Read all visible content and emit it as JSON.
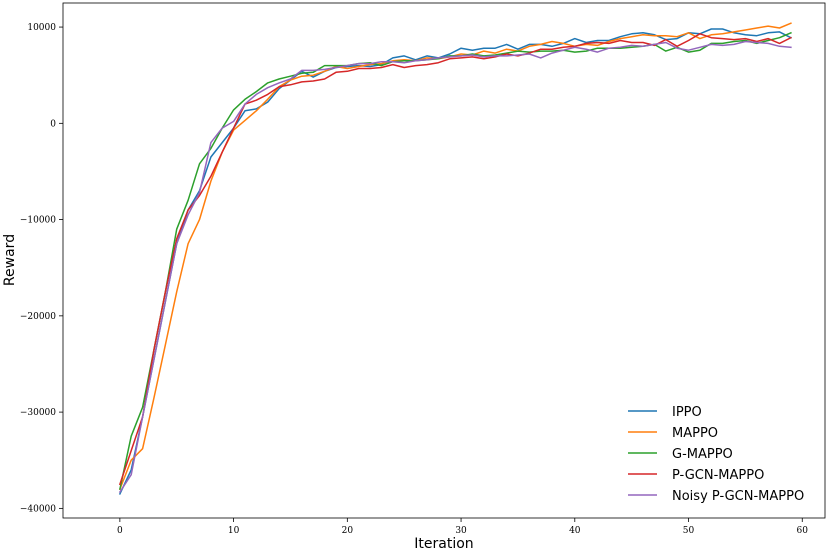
{
  "chart_data": {
    "type": "line",
    "xlabel": "Iteration",
    "ylabel": "Reward",
    "xlim": [
      -5,
      62
    ],
    "ylim": [
      -41000,
      12500
    ],
    "xticks": [
      0,
      10,
      20,
      30,
      40,
      50,
      60
    ],
    "yticks": [
      -40000,
      -30000,
      -20000,
      -10000,
      0,
      10000
    ],
    "legend_position": "lower-right",
    "grid": false,
    "series": [
      {
        "name": "IPPO",
        "color": "#1f77b4",
        "x": [
          0,
          1,
          2,
          3,
          4,
          5,
          6,
          7,
          8,
          9,
          10,
          11,
          12,
          13,
          14,
          15,
          16,
          17,
          18,
          19,
          20,
          21,
          22,
          23,
          24,
          25,
          26,
          27,
          28,
          29,
          30,
          31,
          32,
          33,
          34,
          35,
          36,
          37,
          38,
          39,
          40,
          41,
          42,
          43,
          44,
          45,
          46,
          47,
          48,
          49,
          50,
          51,
          52,
          53,
          54,
          55,
          56,
          57,
          58,
          59
        ],
        "values": [
          -38500,
          -36000,
          -30500,
          -24500,
          -18500,
          -12500,
          -9000,
          -7000,
          -3500,
          -2000,
          -500,
          1300,
          1500,
          2200,
          3600,
          4500,
          5400,
          4800,
          5400,
          5800,
          5900,
          6000,
          5900,
          6100,
          6800,
          7000,
          6600,
          7000,
          6800,
          7200,
          7800,
          7600,
          7800,
          7800,
          8200,
          7700,
          8200,
          8200,
          8000,
          8300,
          8800,
          8400,
          8600,
          8600,
          9000,
          9300,
          9400,
          9200,
          8700,
          8800,
          9400,
          9300,
          9800,
          9800,
          9400,
          9200,
          9100,
          9400,
          9500,
          8900
        ]
      },
      {
        "name": "MAPPO",
        "color": "#ff7f0e",
        "x": [
          0,
          1,
          2,
          3,
          4,
          5,
          6,
          7,
          8,
          9,
          10,
          11,
          12,
          13,
          14,
          15,
          16,
          17,
          18,
          19,
          20,
          21,
          22,
          23,
          24,
          25,
          26,
          27,
          28,
          29,
          30,
          31,
          32,
          33,
          34,
          35,
          36,
          37,
          38,
          39,
          40,
          41,
          42,
          43,
          44,
          45,
          46,
          47,
          48,
          49,
          50,
          51,
          52,
          53,
          54,
          55,
          56,
          57,
          58,
          59
        ],
        "values": [
          -38000,
          -35000,
          -33800,
          -28500,
          -23000,
          -17500,
          -12500,
          -10000,
          -6000,
          -3000,
          -700,
          300,
          1300,
          2500,
          3800,
          4500,
          4900,
          5000,
          5400,
          5900,
          5700,
          5900,
          6100,
          6200,
          6500,
          6600,
          6500,
          6800,
          6700,
          6900,
          7200,
          7100,
          7500,
          7300,
          7700,
          7500,
          8000,
          8200,
          8500,
          8300,
          8000,
          8200,
          8100,
          8500,
          8800,
          9000,
          9200,
          9100,
          9100,
          9000,
          9400,
          8800,
          9200,
          9300,
          9500,
          9700,
          9900,
          10100,
          9900,
          10400
        ]
      },
      {
        "name": "G-MAPPO",
        "color": "#2ca02c",
        "x": [
          0,
          1,
          2,
          3,
          4,
          5,
          6,
          7,
          8,
          9,
          10,
          11,
          12,
          13,
          14,
          15,
          16,
          17,
          18,
          19,
          20,
          21,
          22,
          23,
          24,
          25,
          26,
          27,
          28,
          29,
          30,
          31,
          32,
          33,
          34,
          35,
          36,
          37,
          38,
          39,
          40,
          41,
          42,
          43,
          44,
          45,
          46,
          47,
          48,
          49,
          50,
          51,
          52,
          53,
          54,
          55,
          56,
          57,
          58,
          59
        ],
        "values": [
          -38000,
          -32500,
          -29500,
          -23500,
          -17500,
          -11000,
          -8000,
          -4200,
          -2600,
          -500,
          1400,
          2500,
          3300,
          4200,
          4600,
          4900,
          5200,
          5300,
          6000,
          6000,
          6000,
          6200,
          6300,
          6000,
          6400,
          6500,
          6500,
          6600,
          6700,
          7000,
          7000,
          7200,
          7000,
          7100,
          7300,
          7500,
          7400,
          7500,
          7500,
          7600,
          7400,
          7500,
          7800,
          7800,
          7800,
          7900,
          8000,
          8200,
          7500,
          7900,
          7400,
          7600,
          8300,
          8300,
          8500,
          8600,
          8300,
          8600,
          8900,
          9400
        ]
      },
      {
        "name": "P-GCN-MAPPO",
        "color": "#d62728",
        "x": [
          0,
          1,
          2,
          3,
          4,
          5,
          6,
          7,
          8,
          9,
          10,
          11,
          12,
          13,
          14,
          15,
          16,
          17,
          18,
          19,
          20,
          21,
          22,
          23,
          24,
          25,
          26,
          27,
          28,
          29,
          30,
          31,
          32,
          33,
          34,
          35,
          36,
          37,
          38,
          39,
          40,
          41,
          42,
          43,
          44,
          45,
          46,
          47,
          48,
          49,
          50,
          51,
          52,
          53,
          54,
          55,
          56,
          57,
          58,
          59
        ],
        "values": [
          -37500,
          -34000,
          -30500,
          -23500,
          -17500,
          -12000,
          -9000,
          -7500,
          -5500,
          -3000,
          -500,
          2000,
          2400,
          3000,
          3800,
          4000,
          4300,
          4400,
          4600,
          5300,
          5400,
          5700,
          5700,
          5800,
          6100,
          5800,
          6000,
          6100,
          6300,
          6700,
          6800,
          6900,
          6700,
          6900,
          7200,
          7000,
          7300,
          7700,
          7700,
          7900,
          8000,
          8300,
          8400,
          8300,
          8600,
          8400,
          8400,
          8100,
          8700,
          8000,
          8600,
          9300,
          8900,
          8800,
          8700,
          8800,
          8500,
          8800,
          8300,
          8900
        ]
      },
      {
        "name": "Noisy P-GCN-MAPPO",
        "color": "#9467bd",
        "x": [
          0,
          1,
          2,
          3,
          4,
          5,
          6,
          7,
          8,
          9,
          10,
          11,
          12,
          13,
          14,
          15,
          16,
          17,
          18,
          19,
          20,
          21,
          22,
          23,
          24,
          25,
          26,
          27,
          28,
          29,
          30,
          31,
          32,
          33,
          34,
          35,
          36,
          37,
          38,
          39,
          40,
          41,
          42,
          43,
          44,
          45,
          46,
          47,
          48,
          49,
          50,
          51,
          52,
          53,
          54,
          55,
          56,
          57,
          58,
          59
        ],
        "values": [
          -38300,
          -36500,
          -30500,
          -24500,
          -18500,
          -12500,
          -9500,
          -7200,
          -2000,
          -500,
          200,
          2000,
          3000,
          3700,
          4200,
          4600,
          5500,
          5500,
          5600,
          5800,
          6000,
          6200,
          6200,
          6400,
          6400,
          6300,
          6500,
          6600,
          6800,
          6900,
          7000,
          7100,
          6900,
          7000,
          7000,
          7100,
          7200,
          6800,
          7300,
          7600,
          7900,
          7700,
          7400,
          7800,
          7900,
          8100,
          8000,
          8200,
          8400,
          7800,
          7600,
          7900,
          8200,
          8100,
          8200,
          8500,
          8400,
          8300,
          8000,
          7900
        ]
      }
    ]
  }
}
